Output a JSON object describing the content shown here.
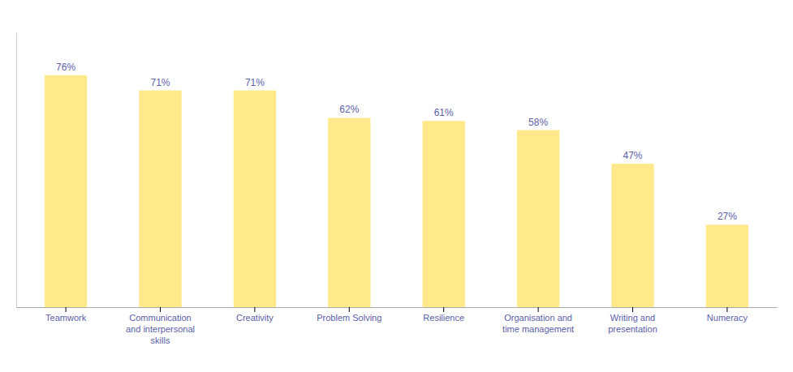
{
  "chart_data": {
    "type": "bar",
    "categories": [
      "Teamwork",
      "Communication\nand interpersonal\nskills",
      "Creativity",
      "Problem Solving",
      "Resilience",
      "Organisation and\ntime management",
      "Writing and\npresentation",
      "Numeracy"
    ],
    "values": [
      76,
      71,
      71,
      62,
      61,
      58,
      47,
      27
    ],
    "value_labels": [
      "76%",
      "71%",
      "71%",
      "62%",
      "61%",
      "58%",
      "47%",
      "27%"
    ],
    "color": "#FFE98A",
    "ylim": [
      0,
      90
    ],
    "grid": false,
    "data_labels": true,
    "tick_labels": "x"
  }
}
